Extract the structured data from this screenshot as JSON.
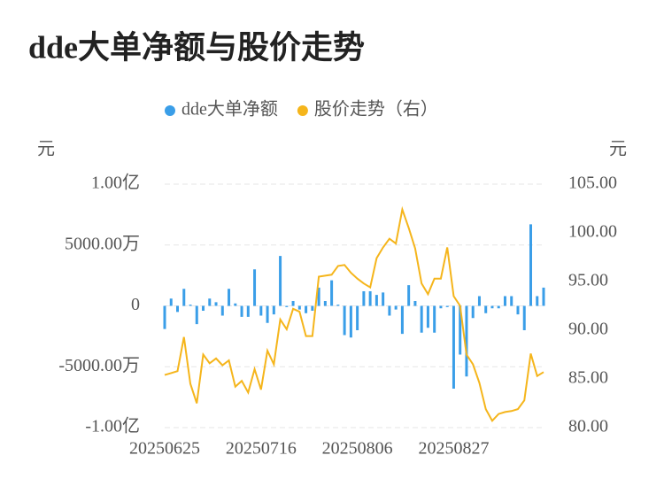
{
  "chart_data": {
    "type": "bar-line",
    "title": "dde大单净额与股价走势",
    "y_label": "元",
    "y2_label": "元",
    "categories": [
      "20250625",
      null,
      null,
      null,
      null,
      null,
      null,
      null,
      null,
      null,
      null,
      null,
      null,
      null,
      null,
      "20250716",
      null,
      null,
      null,
      null,
      null,
      null,
      null,
      null,
      null,
      null,
      null,
      null,
      null,
      null,
      "20250806",
      null,
      null,
      null,
      null,
      null,
      null,
      null,
      null,
      null,
      null,
      null,
      null,
      null,
      null,
      "20250827",
      null,
      null,
      null,
      null,
      null,
      null,
      null,
      null,
      null,
      null,
      null,
      null,
      null,
      null
    ],
    "series": [
      {
        "name": "dde大单净额",
        "color": "#3a9ee8",
        "kind": "bar",
        "axis": "y",
        "values": [
          -1900,
          600,
          -500,
          1400,
          100,
          -1500,
          -400,
          600,
          300,
          -800,
          1400,
          200,
          -900,
          -900,
          3000,
          -800,
          -1400,
          -700,
          4100,
          -100,
          400,
          -300,
          -600,
          -400,
          1500,
          400,
          2100,
          100,
          -2400,
          -2600,
          -2000,
          1200,
          1200,
          900,
          1100,
          -800,
          -300,
          -2300,
          1700,
          400,
          -2200,
          -1800,
          -2200,
          -200,
          -100,
          -6800,
          -4000,
          -5800,
          -1000,
          800,
          -600,
          -200,
          -200,
          800,
          800,
          -700,
          -2000,
          6700,
          800,
          1500
        ]
      },
      {
        "name": "股价走势（右）",
        "color": "#f5b51b",
        "kind": "line",
        "axis": "y2",
        "values": [
          85.4,
          85.6,
          85.8,
          89.3,
          84.5,
          82.5,
          87.5,
          86.6,
          87.1,
          86.4,
          86.9,
          84.2,
          84.8,
          83.6,
          86.0,
          83.9,
          87.9,
          86.5,
          91.1,
          90.1,
          92.2,
          91.9,
          89.4,
          89.4,
          95.5,
          95.6,
          95.7,
          96.6,
          96.7,
          95.9,
          95.3,
          94.8,
          94.4,
          97.4,
          98.5,
          99.4,
          98.9,
          102.4,
          100.5,
          98.4,
          94.8,
          93.7,
          95.3,
          95.3,
          98.5,
          93.5,
          92.5,
          87.5,
          86.5,
          84.6,
          81.9,
          80.7,
          81.4,
          81.6,
          81.7,
          81.9,
          82.8,
          87.6,
          85.3,
          85.7
        ]
      }
    ],
    "ylim": [
      -10000,
      10000
    ],
    "yticks": [
      {
        "value": 10000,
        "label": "1.00亿"
      },
      {
        "value": 5000,
        "label": "5000.00万"
      },
      0,
      {
        "value": -5000,
        "label": "-5000.00万"
      },
      {
        "value": -10000,
        "label": "-1.00亿"
      }
    ],
    "y2lim": [
      80,
      105
    ],
    "y2ticks": [
      {
        "value": 105,
        "label": "105.00"
      },
      {
        "value": 100,
        "label": "100.00"
      },
      {
        "value": 95,
        "label": "95.00"
      },
      {
        "value": 90,
        "label": "90.00"
      },
      {
        "value": 85,
        "label": "85.00"
      },
      {
        "value": 80,
        "label": "80.00"
      }
    ],
    "grid": true
  }
}
